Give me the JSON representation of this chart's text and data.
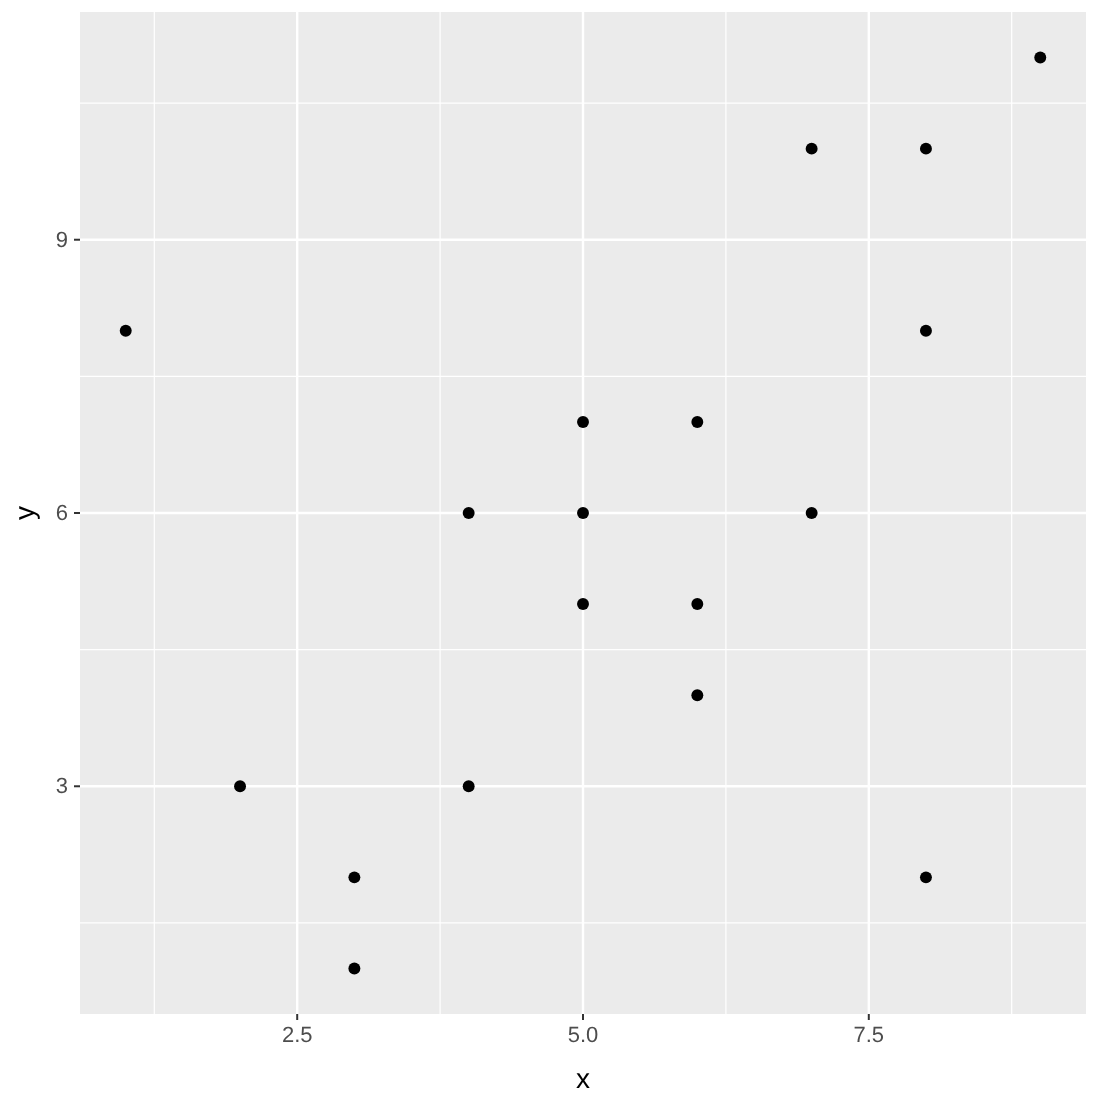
{
  "chart_data": {
    "type": "scatter",
    "xlabel": "x",
    "ylabel": "y",
    "x": [
      1,
      2,
      3,
      3,
      4,
      4,
      5,
      5,
      5,
      6,
      6,
      6,
      7,
      7,
      8,
      8,
      8,
      9
    ],
    "values": [
      8,
      3,
      2,
      1,
      6,
      3,
      7,
      6,
      5,
      7,
      5,
      4,
      10,
      6,
      10,
      8,
      2,
      11
    ],
    "color": "#000000",
    "marker": "circle",
    "xlim": [
      0.6,
      9.4
    ],
    "xticks": [
      {
        "value": 2.5,
        "label": "2.5"
      },
      {
        "value": 5,
        "label": "5.0"
      },
      {
        "value": 7.5,
        "label": "7.5"
      }
    ],
    "ylim": [
      0.5,
      11.5
    ],
    "yticks": [
      3,
      6,
      9
    ],
    "grid": true
  }
}
